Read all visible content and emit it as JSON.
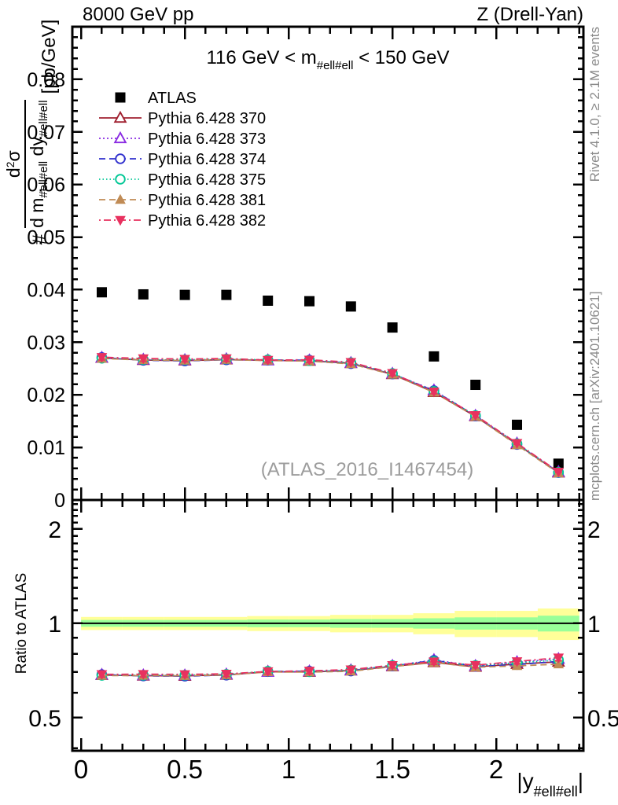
{
  "header": {
    "left": "8000 GeV pp",
    "right": "Z (Drell-Yan)"
  },
  "title": {
    "prefix": "116 GeV < m",
    "sub": "#ell#ell",
    "suffix": " < 150 GeV"
  },
  "ylabel": {
    "hash": "#",
    "num_d": "d",
    "num_sup": "2",
    "num_sigma": "σ",
    "den_dm": "d m",
    "den_sub1": "#ell#ell",
    "den_dy": " dy",
    "den_sub2": "#ell#ell",
    "units": "[pb/GeV]"
  },
  "xlabel": {
    "open": "|y",
    "sub": "#ell#ell",
    "close": "|"
  },
  "ratio_label": "Ratio to ATLAS",
  "watermark": "(ATLAS_2016_I1467454)",
  "side_notes": {
    "top": "Rivet 4.1.0, ≥ 2.1M events",
    "bottom": "mcplots.cern.ch [arXiv:2401.10621]"
  },
  "chart_data": {
    "type": "line",
    "x": [
      0.1,
      0.3,
      0.5,
      0.7,
      0.9,
      1.1,
      1.3,
      1.5,
      1.7,
      1.9,
      2.1,
      2.3
    ],
    "bin_width": 0.2,
    "xlim": [
      -0.042,
      2.42
    ],
    "ylim_main": [
      0,
      0.09
    ],
    "ylim_ratio": [
      0.392,
      2.476
    ],
    "ratio_log": true,
    "x_ticks": [
      0,
      0.5,
      1,
      1.5,
      2
    ],
    "x_tick_labels": [
      "0",
      "0.5",
      "1",
      "1.5",
      "2"
    ],
    "x_minor_step": 0.1,
    "y_ticks_main": [
      0,
      0.01,
      0.02,
      0.03,
      0.04,
      0.05,
      0.06,
      0.07,
      0.08
    ],
    "y_tick_labels_main": [
      "0",
      "0.01",
      "0.02",
      "0.03",
      "0.04",
      "0.05",
      "0.06",
      "0.07",
      "0.08"
    ],
    "y_minor_step_main": 0.002,
    "ratio_ticks": [
      0.5,
      1,
      2
    ],
    "ratio_tick_labels": [
      "0.5",
      "1",
      "2"
    ],
    "ratio_minor_ticks": [
      0.4,
      0.6,
      0.7,
      0.8,
      0.9,
      1.1,
      1.2,
      1.3,
      1.4,
      1.5,
      1.6,
      1.7,
      1.8,
      1.9,
      2.1,
      2.2,
      2.3,
      2.4
    ],
    "series": [
      {
        "name": "ATLAS",
        "color": "#000000",
        "marker": "square-filled",
        "line": "none",
        "err_frac": 0.012,
        "values": [
          0.0395,
          0.0391,
          0.039,
          0.039,
          0.0379,
          0.0378,
          0.0368,
          0.0328,
          0.0273,
          0.0219,
          0.0143,
          0.0069
        ]
      },
      {
        "name": "Pythia 6.428 370",
        "color": "#A02030",
        "marker": "triangle-open",
        "line": "solid",
        "err_frac": 0.02,
        "values": [
          0.027,
          0.0266,
          0.0265,
          0.0267,
          0.02655,
          0.02645,
          0.026,
          0.0239,
          0.0205,
          0.0159,
          0.0106,
          0.0052
        ]
      },
      {
        "name": "Pythia 6.428 373",
        "color": "#8A2BE2",
        "marker": "triangle-open",
        "line": "dotted",
        "err_frac": 0.02,
        "values": [
          0.02705,
          0.02668,
          0.0266,
          0.02678,
          0.02652,
          0.02655,
          0.02605,
          0.024,
          0.02085,
          0.01602,
          0.01075,
          0.00531
        ]
      },
      {
        "name": "Pythia 6.428 374",
        "color": "#3131CE",
        "marker": "circle-open",
        "line": "dashed",
        "err_frac": 0.02,
        "values": [
          0.0271,
          0.02655,
          0.02645,
          0.02665,
          0.0266,
          0.0266,
          0.02592,
          0.02396,
          0.0208,
          0.01595,
          0.01056,
          0.00522
        ]
      },
      {
        "name": "Pythia 6.428 375",
        "color": "#00C795",
        "marker": "circle-open",
        "line": "fine-dotted",
        "err_frac": 0.02,
        "values": [
          0.02695,
          0.0267,
          0.02665,
          0.0268,
          0.02665,
          0.02649,
          0.0261,
          0.02405,
          0.02066,
          0.01606,
          0.0107,
          0.00527
        ]
      },
      {
        "name": "Pythia 6.428 381",
        "color": "#C08B55",
        "marker": "triangle-filled",
        "line": "dashed",
        "err_frac": 0.02,
        "values": [
          0.0269,
          0.02662,
          0.02652,
          0.02668,
          0.02651,
          0.02641,
          0.02586,
          0.02386,
          0.02046,
          0.01586,
          0.01046,
          0.00511
        ]
      },
      {
        "name": "Pythia 6.428 382",
        "color": "#E8315F",
        "marker": "triangle-down-filled",
        "line": "dashdot",
        "err_frac": 0.02,
        "values": [
          0.02716,
          0.02691,
          0.02681,
          0.02691,
          0.02661,
          0.02666,
          0.02621,
          0.02411,
          0.02061,
          0.01611,
          0.01081,
          0.00536
        ]
      }
    ],
    "reference_series": "ATLAS",
    "band": {
      "center": 1.0,
      "yellow_frac": [
        0.048,
        0.048,
        0.048,
        0.048,
        0.055,
        0.055,
        0.064,
        0.064,
        0.077,
        0.096,
        0.096,
        0.115
      ],
      "green_frac": [
        0.025,
        0.025,
        0.025,
        0.025,
        0.028,
        0.028,
        0.032,
        0.032,
        0.038,
        0.045,
        0.045,
        0.058
      ],
      "yellow_color": "#FFFF99",
      "green_color": "#99FF99"
    }
  }
}
